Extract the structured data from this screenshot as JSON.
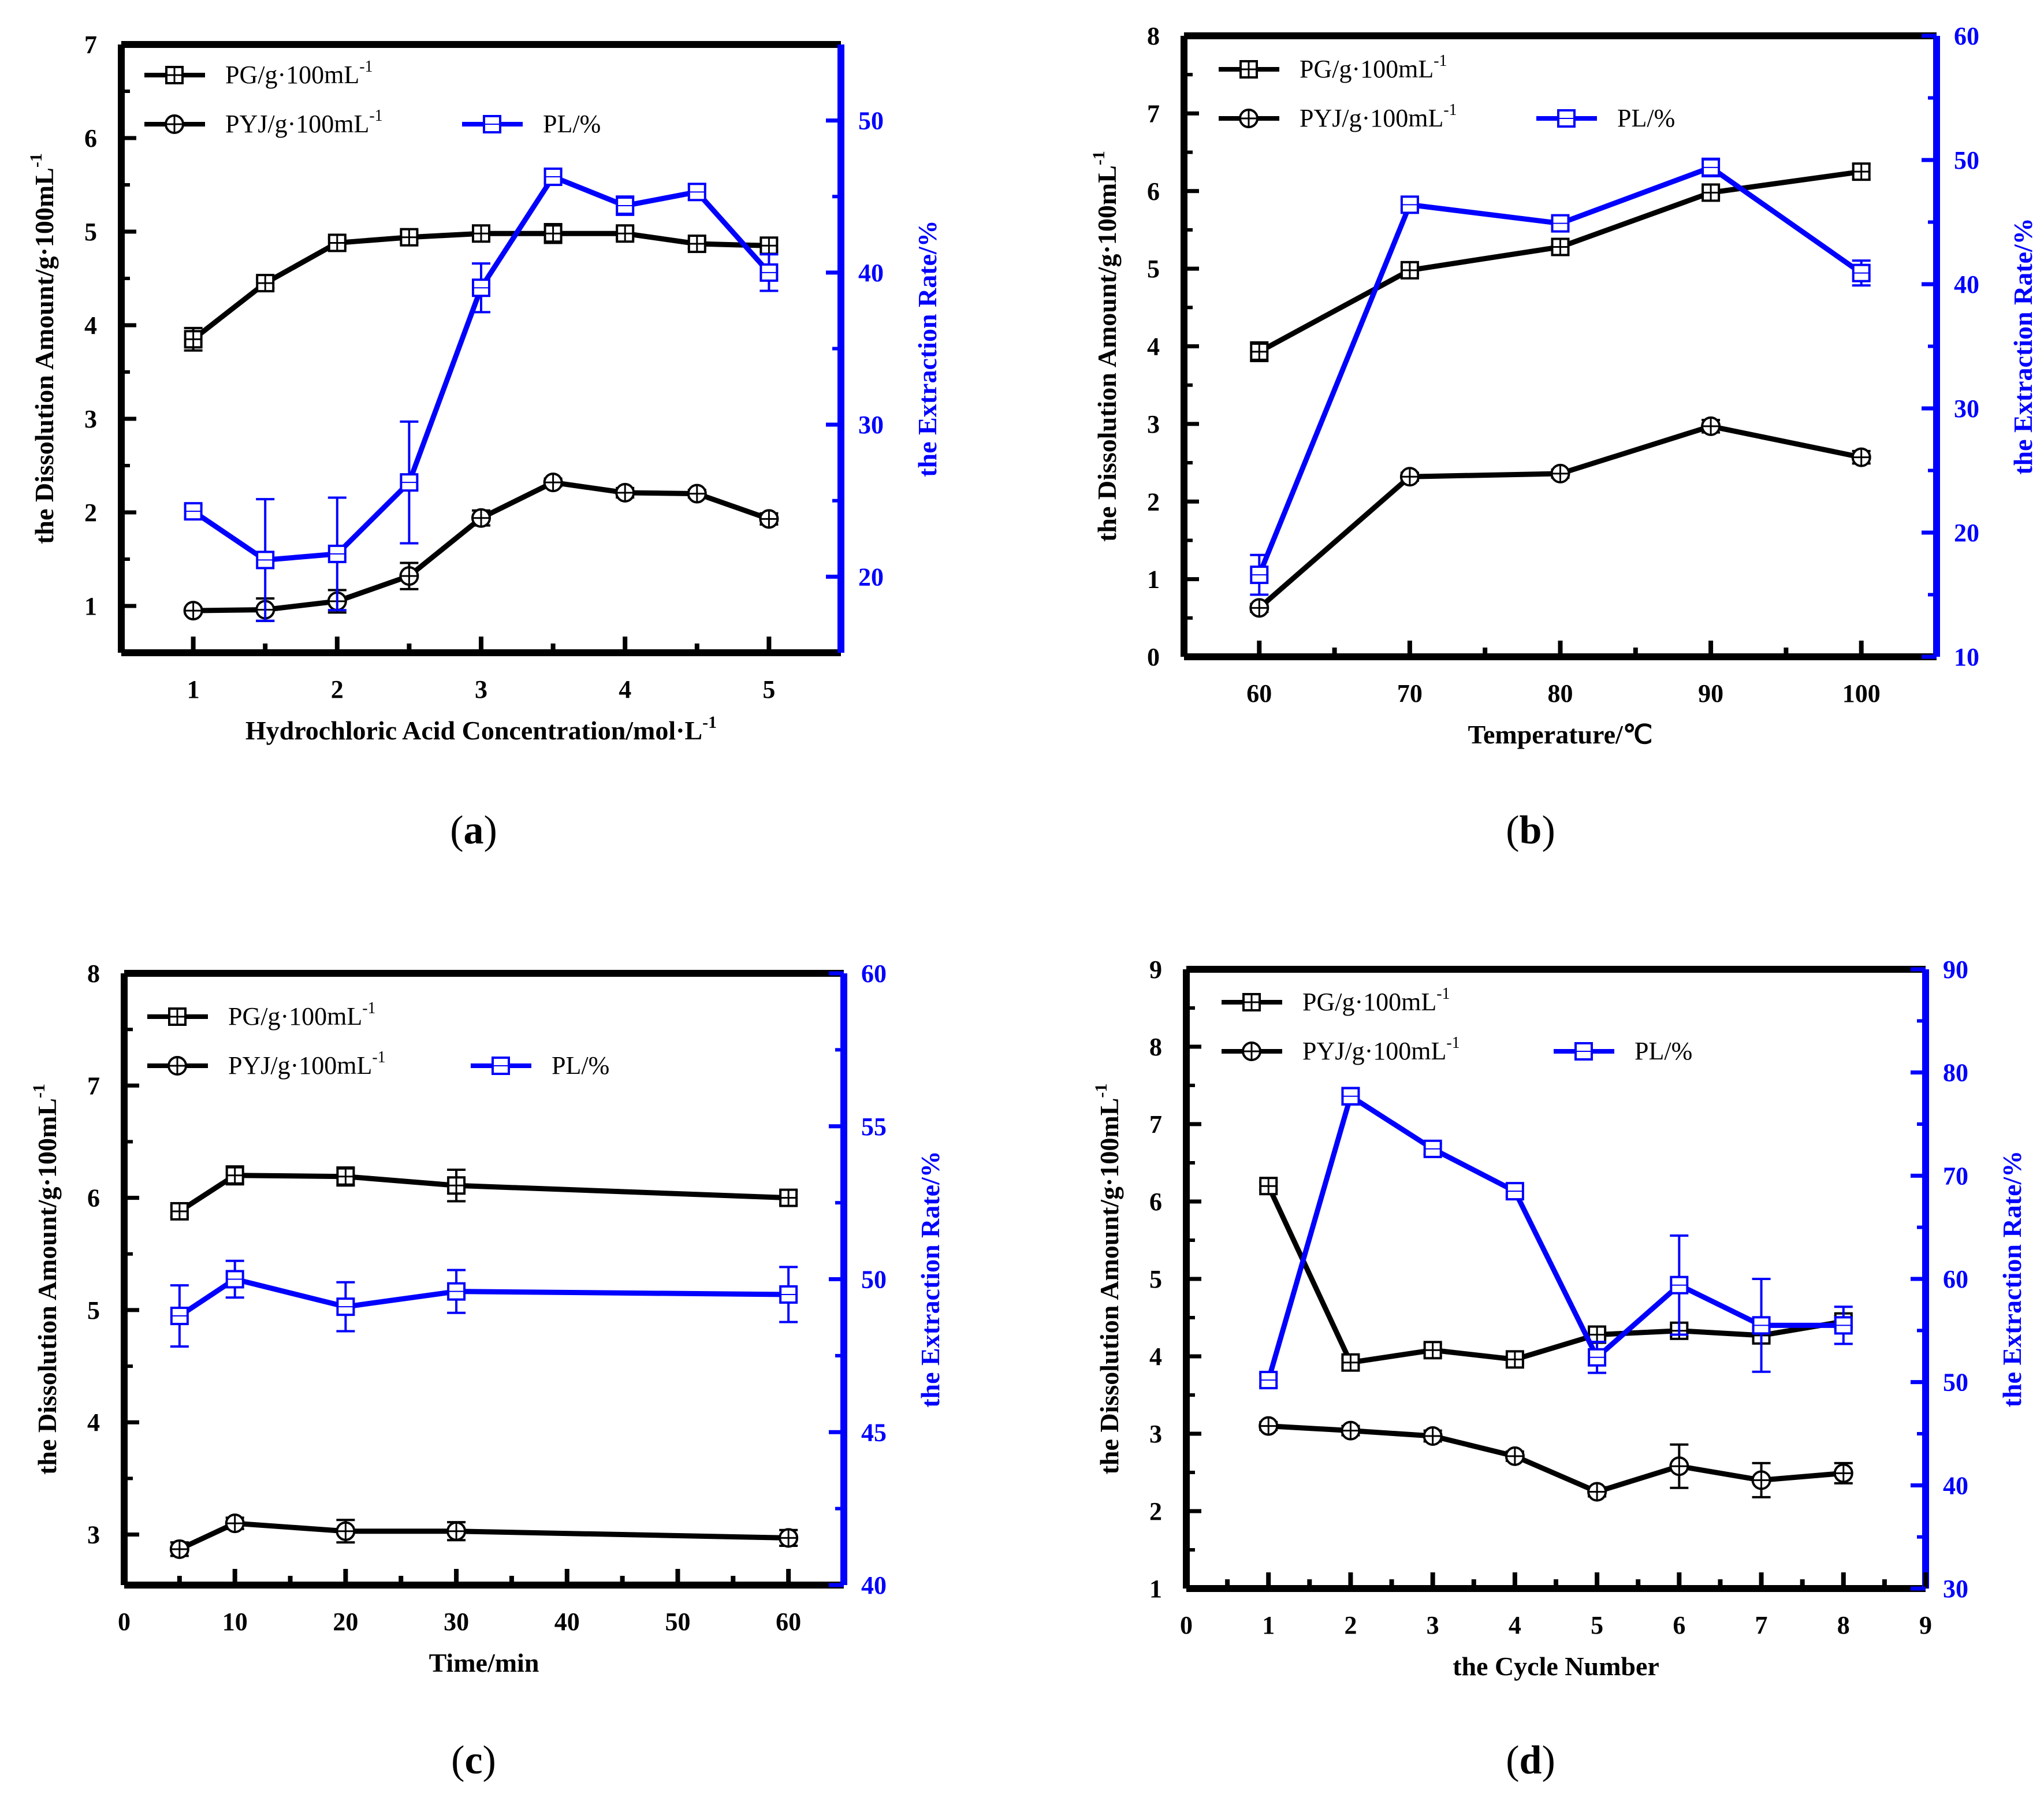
{
  "figure": {
    "colors": {
      "black": "#000000",
      "blue": "#0000ff"
    },
    "legend": {
      "pg": "PG/g·100mL",
      "pyj": "PYJ/g·100mL",
      "pl": "PL/%",
      "sup": "-1"
    },
    "ylabel_left_base": "the Dissolution Amount/g·100mL",
    "ylabel_left_sup": "-1",
    "ylabel_right": "the Extraction Rate/%"
  },
  "chart_data": [
    {
      "id": "a",
      "type": "line",
      "panel_label": "a",
      "xlabel": "Hydrochloric Acid Concentration/mol·L",
      "xlabel_sup": "-1",
      "xlim": [
        0.5,
        5.5
      ],
      "xticks": [
        1,
        2,
        3,
        4,
        5
      ],
      "ylim": [
        0.5,
        7
      ],
      "yticks": [
        1,
        2,
        3,
        4,
        5,
        6,
        7
      ],
      "y2lim": [
        15,
        55
      ],
      "y2ticks": [
        20,
        30,
        40,
        50
      ],
      "series": [
        {
          "name": "PG/g·100mL-1",
          "axis": "left",
          "marker": "boxplus",
          "color": "#000000",
          "x": [
            1,
            1.5,
            2,
            2.5,
            3,
            3.5,
            4,
            4.5,
            5
          ],
          "y": [
            3.85,
            4.45,
            4.88,
            4.94,
            4.98,
            4.98,
            4.98,
            4.87,
            4.85
          ],
          "err": [
            0.12,
            0.05,
            0.05,
            0.06,
            0.06,
            0.1,
            0.06,
            0.05,
            0.06
          ]
        },
        {
          "name": "PYJ/g·100mL-1",
          "axis": "left",
          "marker": "circleplus",
          "color": "#000000",
          "x": [
            1,
            1.5,
            2,
            2.5,
            3,
            3.5,
            4,
            4.5,
            5
          ],
          "y": [
            0.95,
            0.96,
            1.05,
            1.32,
            1.94,
            2.32,
            2.21,
            2.2,
            1.93
          ],
          "err": [
            0.03,
            0.12,
            0.12,
            0.14,
            0.08,
            0.04,
            0.05,
            0.04,
            0.06
          ]
        },
        {
          "name": "PL/%",
          "axis": "right",
          "marker": "square",
          "color": "#0000ff",
          "x": [
            1,
            1.5,
            2,
            2.5,
            3,
            3.5,
            4,
            4.5,
            5
          ],
          "y": [
            24.3,
            21.1,
            21.5,
            26.2,
            39.0,
            46.3,
            44.4,
            45.3,
            40.0
          ],
          "err": [
            0.4,
            4.0,
            3.7,
            4.0,
            1.6,
            0.4,
            0.6,
            0.5,
            1.2
          ]
        }
      ]
    },
    {
      "id": "b",
      "type": "line",
      "panel_label": "b",
      "xlabel": "Temperature/℃",
      "xlabel_sup": "",
      "xlim": [
        55,
        105
      ],
      "xticks": [
        60,
        70,
        80,
        90,
        100
      ],
      "ylim": [
        0,
        8
      ],
      "yticks": [
        0,
        1,
        2,
        3,
        4,
        5,
        6,
        7,
        8
      ],
      "y2lim": [
        10,
        60
      ],
      "y2ticks": [
        10,
        20,
        30,
        40,
        50,
        60
      ],
      "series": [
        {
          "name": "PG/g·100mL-1",
          "axis": "left",
          "marker": "boxplus",
          "color": "#000000",
          "x": [
            60,
            70,
            80,
            90,
            100
          ],
          "y": [
            3.93,
            4.98,
            5.28,
            5.98,
            6.25
          ],
          "err": [
            0.12,
            0.05,
            0.1,
            0.05,
            0.1
          ]
        },
        {
          "name": "PYJ/g·100mL-1",
          "axis": "left",
          "marker": "circleplus",
          "color": "#000000",
          "x": [
            60,
            70,
            80,
            90,
            100
          ],
          "y": [
            0.63,
            2.32,
            2.36,
            2.97,
            2.57
          ],
          "err": [
            0.05,
            0.05,
            0.05,
            0.08,
            0.08
          ]
        },
        {
          "name": "PL/%",
          "axis": "right",
          "marker": "square",
          "color": "#0000ff",
          "x": [
            60,
            70,
            80,
            90,
            100
          ],
          "y": [
            16.6,
            46.4,
            44.9,
            49.4,
            40.9
          ],
          "err": [
            1.6,
            0.4,
            0.5,
            0.7,
            1.0
          ]
        }
      ]
    },
    {
      "id": "c",
      "type": "line",
      "panel_label": "c",
      "xlabel": "Time/min",
      "xlabel_sup": "",
      "xlim": [
        0,
        65
      ],
      "xticks": [
        0,
        10,
        20,
        30,
        40,
        50,
        60
      ],
      "ylim": [
        2.55,
        8
      ],
      "yticks": [
        3,
        4,
        5,
        6,
        7,
        8
      ],
      "y2lim": [
        40,
        60
      ],
      "y2ticks": [
        40,
        45,
        50,
        55,
        60
      ],
      "series": [
        {
          "name": "PG/g·100mL-1",
          "axis": "left",
          "marker": "boxplus",
          "color": "#000000",
          "x": [
            5,
            10,
            20,
            30,
            60
          ],
          "y": [
            5.88,
            6.2,
            6.19,
            6.11,
            6.0
          ],
          "err": [
            0.05,
            0.08,
            0.08,
            0.14,
            0.06
          ]
        },
        {
          "name": "PYJ/g·100mL-1",
          "axis": "left",
          "marker": "circleplus",
          "color": "#000000",
          "x": [
            5,
            10,
            20,
            30,
            60
          ],
          "y": [
            2.87,
            3.1,
            3.03,
            3.03,
            2.97
          ],
          "err": [
            0.06,
            0.05,
            0.1,
            0.08,
            0.07
          ]
        },
        {
          "name": "PL/%",
          "axis": "right",
          "marker": "square",
          "color": "#0000ff",
          "x": [
            5,
            10,
            20,
            30,
            60
          ],
          "y": [
            48.8,
            50.0,
            49.1,
            49.6,
            49.5
          ],
          "err": [
            1.0,
            0.6,
            0.8,
            0.7,
            0.9
          ]
        }
      ]
    },
    {
      "id": "d",
      "type": "line",
      "panel_label": "d",
      "xlabel": "the Cycle Number",
      "xlabel_sup": "",
      "xlim": [
        0,
        9
      ],
      "xticks": [
        0,
        1,
        2,
        3,
        4,
        5,
        6,
        7,
        8,
        9
      ],
      "ylim": [
        1,
        9
      ],
      "yticks": [
        1,
        2,
        3,
        4,
        5,
        6,
        7,
        8,
        9
      ],
      "y2lim": [
        30,
        90
      ],
      "y2ticks": [
        30,
        40,
        50,
        60,
        70,
        80,
        90
      ],
      "series": [
        {
          "name": "PG/g·100mL-1",
          "axis": "left",
          "marker": "boxplus",
          "color": "#000000",
          "x": [
            1,
            2,
            3,
            4,
            5,
            6,
            7,
            8
          ],
          "y": [
            6.2,
            3.92,
            4.08,
            3.96,
            4.28,
            4.33,
            4.27,
            4.45
          ],
          "err": [
            0.05,
            0.05,
            0.08,
            0.05,
            0.06,
            0.07,
            0.06,
            0.07
          ]
        },
        {
          "name": "PYJ/g·100mL-1",
          "axis": "left",
          "marker": "circleplus",
          "color": "#000000",
          "x": [
            1,
            2,
            3,
            4,
            5,
            6,
            7,
            8
          ],
          "y": [
            3.1,
            3.04,
            2.97,
            2.71,
            2.25,
            2.58,
            2.4,
            2.49
          ],
          "err": [
            0.05,
            0.06,
            0.07,
            0.06,
            0.06,
            0.28,
            0.22,
            0.13
          ]
        },
        {
          "name": "PL/%",
          "axis": "right",
          "marker": "square",
          "color": "#0000ff",
          "x": [
            1,
            2,
            3,
            4,
            5,
            6,
            7,
            8
          ],
          "y": [
            50.2,
            77.7,
            72.6,
            68.5,
            52.4,
            59.4,
            55.5,
            55.5
          ],
          "err": [
            0.6,
            0.8,
            0.5,
            0.5,
            1.5,
            4.8,
            4.5,
            1.8
          ]
        }
      ]
    }
  ]
}
